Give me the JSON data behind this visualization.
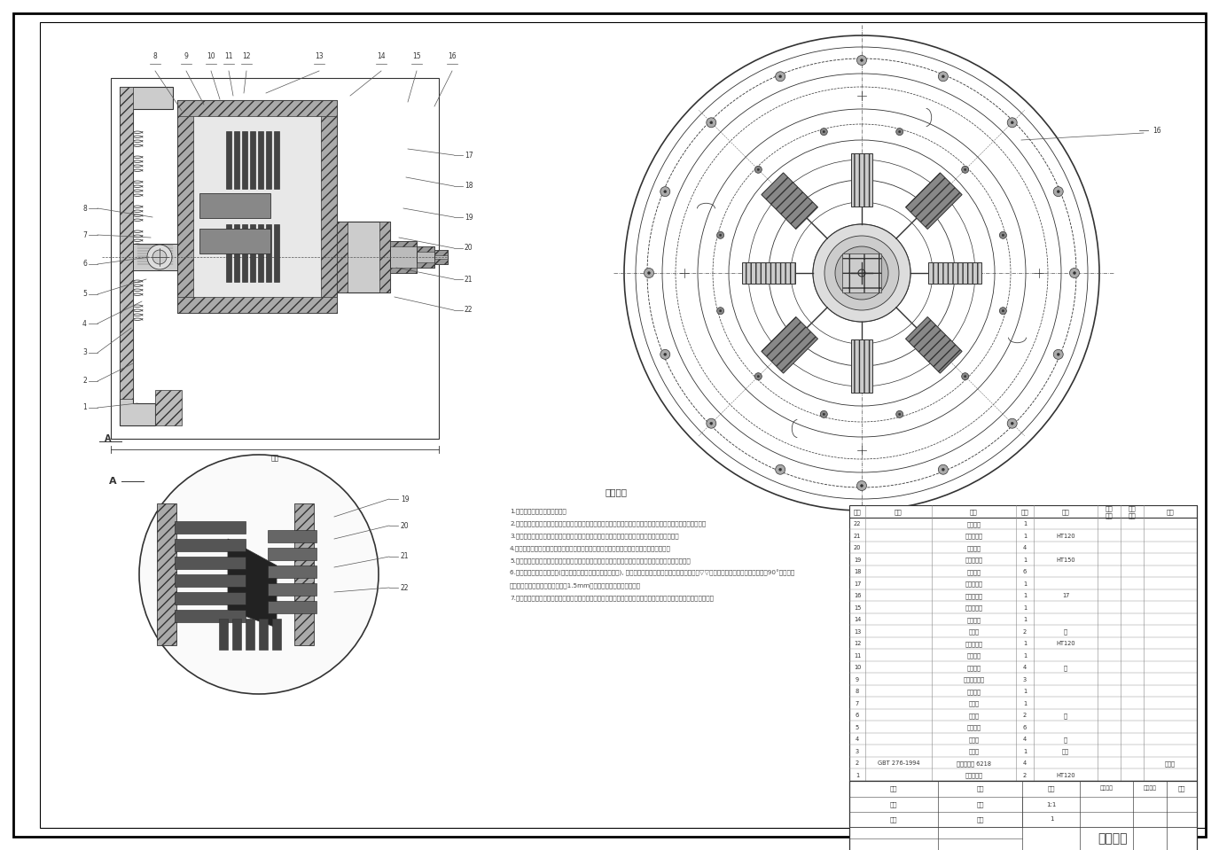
{
  "bg_color": "#ffffff",
  "title": "总装配图",
  "tech_req_title": "技术要求",
  "tech_req_lines": [
    "1.装配时零部件必须经过清洗。",
    "2.零件在装配前必须采用清洗液清洗干净，不得有毛刺、飞边、氧化皮、锈蚀、切屑、油污、涂料和金属屑末等。",
    "3.进入装配的零件无毛刺（包括冲裁件、热处件），确保零件的稳定装配后的旋转过程运行顺畅。",
    "4.摩擦盘组件，装配时注意方向，相邻摩擦片的方向相间排列，整件装配后整体不可有死角。",
    "5.各部分零件允许装配，加工过程中无出现卡滞现象，装配后零部件，整套运转完整，整体运行不卡死。",
    "6.各部分零件允许适当加工(尺寸公差、形位公差均为普通精度), 切削加工件设计加工表面粗糙度均不得低于▽▽，当部分实际零件尺寸大于中心角90°时的位置",
    "所允许的误差，主要根据使用功能1.5mm以下不作为人体裁剪后尺寸。",
    "7.按油泵产品通用技术要求的国家标准相关的其他参数要求，包括转矩特性、液压系统和所安装的整车不松动的要求。"
  ],
  "parts_rows": [
    [
      "22",
      "",
      "调整垫片",
      "1",
      "",
      "",
      "",
      ""
    ],
    [
      "21",
      "",
      "调整垫片组",
      "1",
      "HT120",
      "",
      "",
      ""
    ],
    [
      "20",
      "",
      "外摩擦片",
      "4",
      "",
      "",
      "",
      ""
    ],
    [
      "19",
      "",
      "外摩擦片组",
      "1",
      "HT150",
      "",
      "",
      ""
    ],
    [
      "18",
      "",
      "碟形弹簧",
      "6",
      "",
      "",
      "",
      ""
    ],
    [
      "17",
      "",
      "二道卡簧盘",
      "1",
      "",
      "",
      "",
      ""
    ],
    [
      "16",
      "",
      "第一离合器",
      "1",
      "17",
      "",
      "",
      ""
    ],
    [
      "15",
      "",
      "第二离合器",
      "1",
      "",
      "",
      "",
      ""
    ],
    [
      "14",
      "",
      "双腔活塞",
      "1",
      "",
      "",
      "",
      ""
    ],
    [
      "13",
      "",
      "弹片器",
      "2",
      "铸",
      "",
      "",
      ""
    ],
    [
      "12",
      "",
      "液压配体盘",
      "1",
      "HT120",
      "",
      "",
      ""
    ],
    [
      "11",
      "",
      "外输出盘",
      "1",
      "",
      "",
      "",
      ""
    ],
    [
      "10",
      "",
      "内摩擦片",
      "4",
      "铸",
      "",
      "",
      ""
    ],
    [
      "9",
      "",
      "内摩擦片弹簧",
      "3",
      "",
      "",
      "",
      ""
    ],
    [
      "8",
      "",
      "液压配体",
      "1",
      "",
      "",
      "",
      ""
    ],
    [
      "7",
      "",
      "先动盘",
      "1",
      "",
      "",
      "",
      ""
    ],
    [
      "6",
      "",
      "从动盘",
      "2",
      "铸",
      "",
      "",
      ""
    ],
    [
      "5",
      "",
      "蝶形弹簧",
      "6",
      "",
      "",
      "",
      ""
    ],
    [
      "4",
      "",
      "先动片",
      "4",
      "铸",
      "",
      "",
      ""
    ],
    [
      "3",
      "",
      "输入轴",
      "1",
      "合钢",
      "",
      "",
      ""
    ],
    [
      "2",
      "GBT 276-1994",
      "深沟球轴承 6218",
      "4",
      "",
      "",
      "",
      "配乘用"
    ],
    [
      "1",
      "",
      "离合器壳体",
      "2",
      "HT120",
      "",
      "",
      ""
    ]
  ]
}
